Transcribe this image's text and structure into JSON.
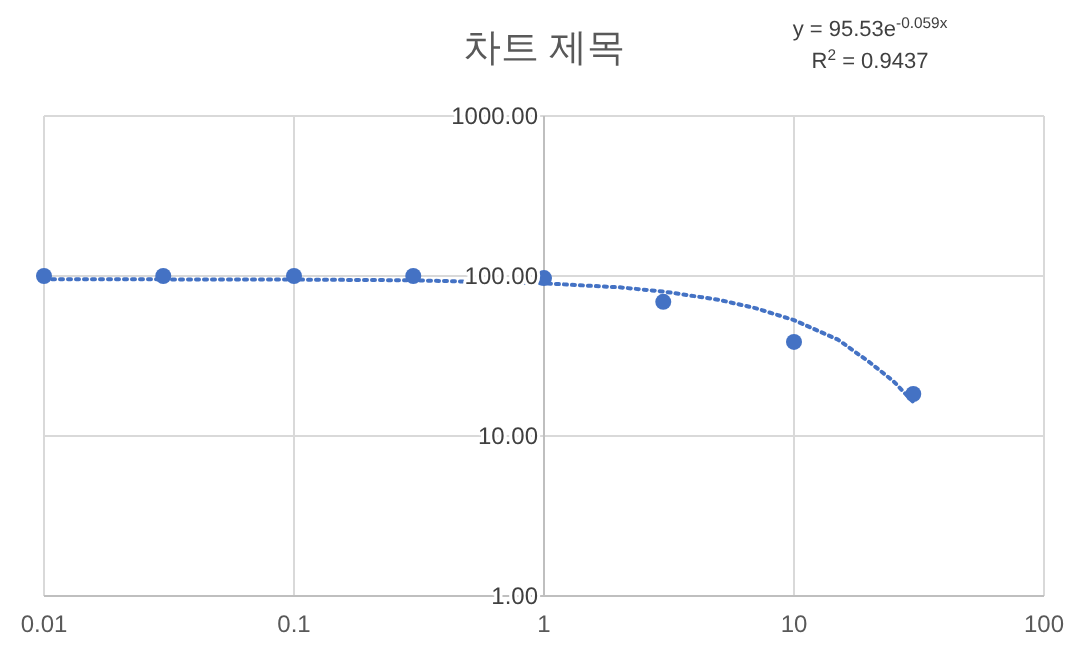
{
  "chart_data": {
    "type": "scatter",
    "title": "차트 제목",
    "annotations": [
      "y = 95.53e$^{-0.059x}$",
      "R$^{2}$ = 0.9437"
    ],
    "log": "xy",
    "grid": true,
    "marker": "circle",
    "xlim": [
      0.01,
      100
    ],
    "ylim": [
      1,
      1000
    ],
    "xticks": [
      0.01,
      0.1,
      1,
      10,
      100
    ],
    "yticks": [
      {
        "value": 1,
        "label": "1.00"
      },
      {
        "value": 10,
        "label": "10.00"
      },
      {
        "value": 100,
        "label": "100.00"
      },
      {
        "value": 1000,
        "label": "1000.00"
      }
    ],
    "series": [
      {
        "color": "#4472c4",
        "x": [
          0.01,
          0.03,
          0.1,
          0.3,
          1,
          3,
          10,
          30
        ],
        "values": [
          100,
          100,
          100,
          100,
          97,
          69,
          38.7,
          18.3
        ]
      },
      {
        "type": "line",
        "line_style": "dotted",
        "marker": "none",
        "color": "#4472c4",
        "x": [
          0.01,
          0.1,
          0.3,
          1,
          2,
          3,
          5,
          7,
          10,
          15,
          20,
          25,
          30
        ],
        "values": [
          95.5,
          95,
          94,
          90,
          85,
          80,
          71,
          63,
          53,
          40,
          29,
          22,
          16.3
        ]
      }
    ]
  }
}
